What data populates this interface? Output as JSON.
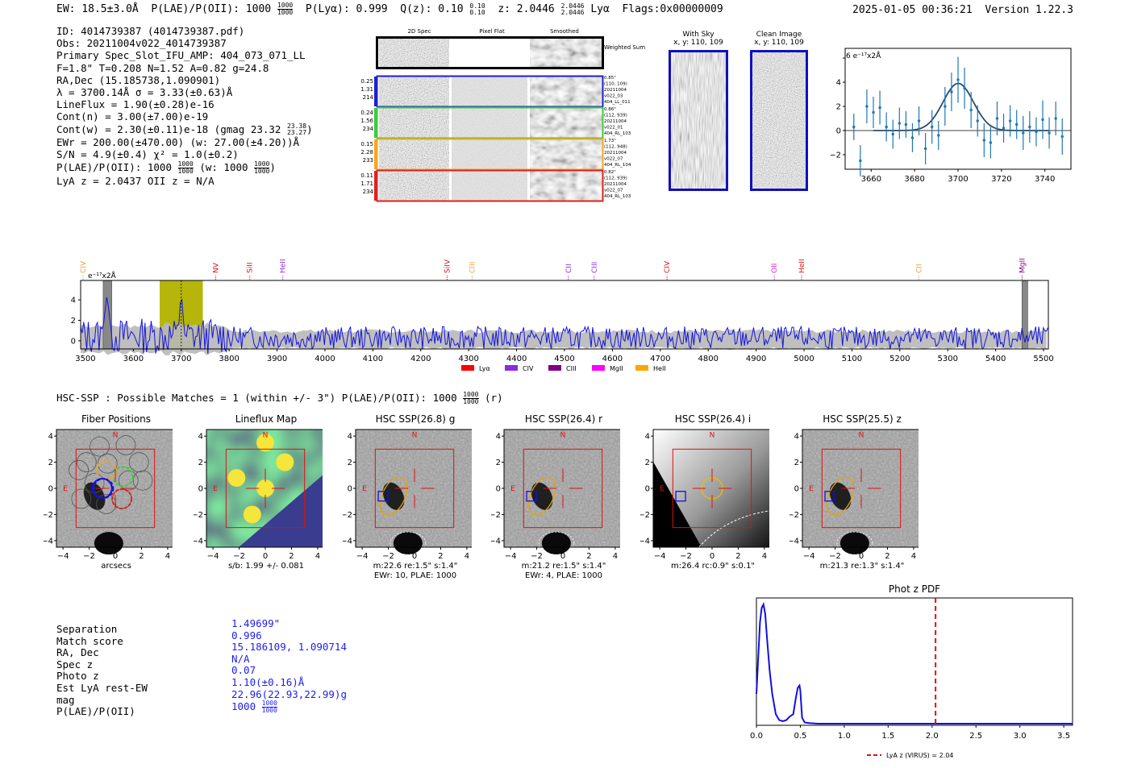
{
  "header": {
    "ew": "EW: 18.5±3.0Å",
    "plae_label": "P(LAE)/P(OII): 1000",
    "plae_hi": "1000",
    "plae_lo": "1000",
    "plya": "P(Lyα): 0.999",
    "qz_label": "Q(z): 0.10",
    "qz_hi": "0.10",
    "qz_lo": "0.10",
    "z_label": "z: 2.0446",
    "z_hi": "2.0446",
    "z_lo": "2.0446",
    "line": "Lyα",
    "flags": "Flags:0x00000009",
    "datetime": "2025-01-05 00:36:21",
    "version": "Version 1.22.3"
  },
  "info": {
    "id": "ID: 4014739387 (4014739387.pdf)",
    "obs": "Obs: 20211004v022_4014739387",
    "primary": "Primary Spec_Slot_IFU_AMP: 404_073_071_LL",
    "fparams": "F=1.8\"  T=0.208  N=1.52  A=0.82  g=24.8",
    "radec": "RA,Dec (15.185738,1.090901)",
    "lambda": "λ = 3700.14Å   σ = 3.33(±0.63)Å",
    "lineflux": "LineFlux = 1.90(±0.28)e-16",
    "contn": "Cont(n) = 3.00(±7.00)e-19",
    "contw": "Cont(w) = 2.30(±0.11)e-18 (gmag 23.32",
    "contw_hi": "23.38",
    "contw_lo": "23.27",
    "contw_end": ")",
    "ewr": "EWr = 200.00(±470.00) (w: 27.00(±4.20))Å",
    "sn": "S/N = 4.9(±0.4)  χ² = 1.0(±0.2)",
    "plae": "P(LAE)/P(OII): 1000",
    "plae_hi": "1000",
    "plae_lo": "1000",
    "plae_w": "(w: 1000",
    "plae_w_hi": "1000",
    "plae_w_lo": "1000",
    "plae_w_end": ")",
    "lya": "LyA z = 2.0437  OII z = N/A"
  },
  "cutouts": {
    "col_labels": [
      "2D Spec",
      "Pixel Flat",
      "Smoothed"
    ],
    "weighted_sum": "Weighted Sum",
    "rows": [
      {
        "left": [
          "0.25",
          "1.31",
          "214"
        ],
        "right": [
          "0.85\"",
          "(110, 109)",
          "20211004",
          "v022_03",
          "404_LL_011"
        ],
        "color": "#1f1fd0"
      },
      {
        "left": [
          "0.24",
          "1.56",
          "234"
        ],
        "right": [
          "0.86\"",
          "(112, 939)",
          "20211004",
          "v022_01",
          "404_RL_103"
        ],
        "color": "#3ccc3c"
      },
      {
        "left": [
          "0.15",
          "2.28",
          "233"
        ],
        "right": [
          "1.73\"",
          "(112, 948)",
          "20211004",
          "v022_07",
          "404_RL_104"
        ],
        "color": "#f5a623"
      },
      {
        "left": [
          "0.11",
          "1.71",
          "234"
        ],
        "right": [
          "0.82\"",
          "(112, 939)",
          "20211004",
          "v022_07",
          "404_RL_103"
        ],
        "color": "#e02020"
      }
    ],
    "with_sky_title": "With Sky",
    "with_sky_coord": "x, y: 110, 109",
    "clean_title": "Clean Image",
    "clean_coord": "x, y: 110, 109"
  },
  "chart_data": [
    {
      "type": "scatter",
      "name": "zoom-line-fit",
      "unit_label": "e⁻¹⁷x2Å",
      "xlim": [
        3648,
        3752
      ],
      "ylim": [
        -3.2,
        6.8
      ],
      "xticks": [
        3660,
        3680,
        3700,
        3720,
        3740
      ],
      "yticks": [
        -2,
        0,
        2,
        4,
        6
      ],
      "x": [
        3652,
        3655,
        3658,
        3661,
        3664,
        3667,
        3670,
        3673,
        3676,
        3679,
        3682,
        3685,
        3688,
        3691,
        3694,
        3697,
        3700,
        3703,
        3706,
        3709,
        3712,
        3715,
        3718,
        3721,
        3724,
        3727,
        3730,
        3733,
        3736,
        3739,
        3742,
        3745,
        3748
      ],
      "y": [
        0.3,
        -2.5,
        2.0,
        1.5,
        1.9,
        0.3,
        -0.3,
        0.6,
        0.5,
        -0.6,
        0.8,
        -1.5,
        0.3,
        -0.4,
        2.0,
        3.2,
        4.2,
        3.5,
        1.7,
        0.8,
        -0.8,
        -1.0,
        1.0,
        0.2,
        0.8,
        0.5,
        -0.2,
        0.3,
        -0.1,
        0.9,
        -0.2,
        1.0,
        -0.5
      ],
      "err": [
        1.1,
        1.3,
        1.4,
        1.3,
        1.4,
        1.2,
        1.2,
        1.3,
        1.1,
        1.2,
        1.2,
        1.3,
        1.4,
        1.2,
        1.6,
        1.6,
        1.9,
        1.7,
        1.5,
        1.3,
        1.4,
        1.3,
        1.4,
        1.2,
        1.3,
        1.2,
        1.4,
        1.3,
        1.2,
        1.6,
        1.3,
        1.4,
        1.5
      ],
      "fit": {
        "center": 3700.1,
        "sigma": 3.33,
        "amp": 3.9,
        "cont": 0.0
      }
    },
    {
      "type": "line",
      "name": "full-spectrum",
      "unit_label": "e⁻¹⁷x2Å",
      "xlim": [
        3490,
        5510
      ],
      "ylim": [
        -0.8,
        5.9
      ],
      "xticks": [
        3500,
        3600,
        3700,
        3800,
        3900,
        4000,
        4100,
        4200,
        4300,
        4400,
        4500,
        4600,
        4700,
        4800,
        4900,
        5000,
        5100,
        5200,
        5300,
        5400,
        5500
      ],
      "yticks": [
        0,
        2,
        4
      ],
      "noise_level": 0.75,
      "highlight": [
        3655,
        3745
      ],
      "gray_bands": [
        [
          3537,
          3555
        ],
        [
          5455,
          5467
        ]
      ],
      "marker": 3700,
      "line_markers": [
        {
          "label": "CIV",
          "x": 3495,
          "color": "#e6a23c"
        },
        {
          "label": "NV",
          "x": 3772,
          "color": "#e01010"
        },
        {
          "label": "SiII",
          "x": 3843,
          "color": "#e01010"
        },
        {
          "label": "HeII",
          "x": 3912,
          "color": "#8a2be2"
        },
        {
          "label": "SiIV",
          "x": 4255,
          "color": "#e01010"
        },
        {
          "label": "CIII",
          "x": 4307,
          "color": "#e6a23c"
        },
        {
          "label": "CII",
          "x": 4508,
          "color": "#8a2be2"
        },
        {
          "label": "CIII",
          "x": 4562,
          "color": "#8a2be2"
        },
        {
          "label": "CIV",
          "x": 4714,
          "color": "#e01010"
        },
        {
          "label": "OII",
          "x": 4938,
          "color": "#e020e0"
        },
        {
          "label": "HeII",
          "x": 4995,
          "color": "#e01010"
        },
        {
          "label": "CII",
          "x": 5240,
          "color": "#e6a23c"
        },
        {
          "label": "MgII",
          "x": 5455,
          "color": "#8a008a"
        }
      ],
      "legend": [
        {
          "label": "Lyα",
          "color": "#ff0000"
        },
        {
          "label": "CIV",
          "color": "#8a2be2"
        },
        {
          "label": "CIII",
          "color": "#800080"
        },
        {
          "label": "MgII",
          "color": "#ff00ff"
        },
        {
          "label": "HeII",
          "color": "#ffa500"
        }
      ]
    },
    {
      "type": "line",
      "name": "phot-z-pdf",
      "title": "Phot z PDF",
      "xlim": [
        0,
        3.6
      ],
      "xticks": [
        0.0,
        0.5,
        1.0,
        1.5,
        2.0,
        2.5,
        3.0,
        3.5
      ],
      "x": [
        0.0,
        0.02,
        0.04,
        0.06,
        0.08,
        0.1,
        0.12,
        0.15,
        0.18,
        0.22,
        0.26,
        0.3,
        0.34,
        0.38,
        0.42,
        0.45,
        0.47,
        0.49,
        0.5,
        0.52,
        0.55,
        0.6,
        0.7,
        1.0,
        2.0,
        3.0,
        3.6
      ],
      "y": [
        0.25,
        0.55,
        0.85,
        0.97,
        1.0,
        0.92,
        0.72,
        0.45,
        0.25,
        0.08,
        0.03,
        0.02,
        0.03,
        0.06,
        0.08,
        0.22,
        0.3,
        0.32,
        0.28,
        0.05,
        0.01,
        0.005,
        0.0,
        0.0,
        0.0,
        0.0,
        0.0
      ],
      "vline": 2.04,
      "legend": "LyA z (VIRUS) = 2.04"
    }
  ],
  "match_header": {
    "text": "HSC-SSP : Possible Matches = 1 (within +/- 3\")  P(LAE)/P(OII): 1000",
    "hi": "1000",
    "lo": "1000",
    "end": "(r)"
  },
  "panels": [
    {
      "title": "Fiber Positions",
      "cap1": "arcsecs",
      "cap2": ""
    },
    {
      "title": "Lineflux Map",
      "cap1": "s/b: 1.99 +/- 0.081",
      "cap2": ""
    },
    {
      "title": "HSC SSP(26.8) g",
      "cap1": "m:22.6  re:1.5\"  s:1.4\"",
      "cap2": "EWr: 10, PLAE: 1000"
    },
    {
      "title": "HSC SSP(26.4) r",
      "cap1": "m:21.2  re:1.5\"  s:1.4\"",
      "cap2": "EWr: 4, PLAE: 1000"
    },
    {
      "title": "HSC SSP(26.4) i",
      "cap1": "m:26.4 rc:0.9\"  s:0.1\"",
      "cap2": ""
    },
    {
      "title": "HSC SSP(25.5) z",
      "cap1": "m:21.3  re:1.3\"  s:1.4\"",
      "cap2": ""
    }
  ],
  "panel_axes": {
    "xticks": [
      "−4",
      "−2",
      "0",
      "2",
      "4"
    ],
    "yticks": [
      "4",
      "2",
      "0",
      "−2",
      "−4"
    ],
    "n": "N",
    "e": "E"
  },
  "match": {
    "labels": [
      "Separation",
      "Match score",
      "RA, Dec",
      "Spec z",
      "Photo z",
      "Est LyA rest-EW",
      "mag",
      "P(LAE)/P(OII)"
    ],
    "values": [
      "1.49699\"",
      "0.996",
      "15.186109, 1.090714",
      "N/A",
      "0.07",
      "1.10(±0.16)Å",
      "22.96(22.93,22.99)g",
      "1000"
    ],
    "plae_hi": "1000",
    "plae_lo": "1000"
  },
  "colors": {
    "spectrum": "#1414e0",
    "fit": "#2a4d69",
    "points": "#1f77b4",
    "highlight": "#b5b50a",
    "vline": "#e01010"
  }
}
